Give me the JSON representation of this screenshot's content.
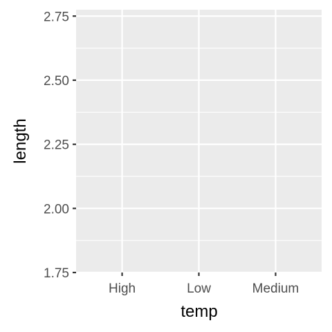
{
  "chart_data": {
    "type": "scatter",
    "title": "",
    "xlabel": "temp",
    "ylabel": "length",
    "categories": [
      "High",
      "Low",
      "Medium"
    ],
    "y_ticks": [
      "1.75",
      "2.00",
      "2.25",
      "2.50",
      "2.75"
    ],
    "y_tick_values": [
      1.75,
      2.0,
      2.25,
      2.5,
      2.75
    ],
    "ylim": [
      1.75,
      2.775
    ],
    "series": [],
    "grid": true,
    "legend": "none",
    "colors": {
      "panel": "#ebebeb",
      "gridline": "#ffffff",
      "axis_tick": "#333333",
      "tick_label": "#4d4d4d",
      "axis_title": "#000000"
    }
  }
}
